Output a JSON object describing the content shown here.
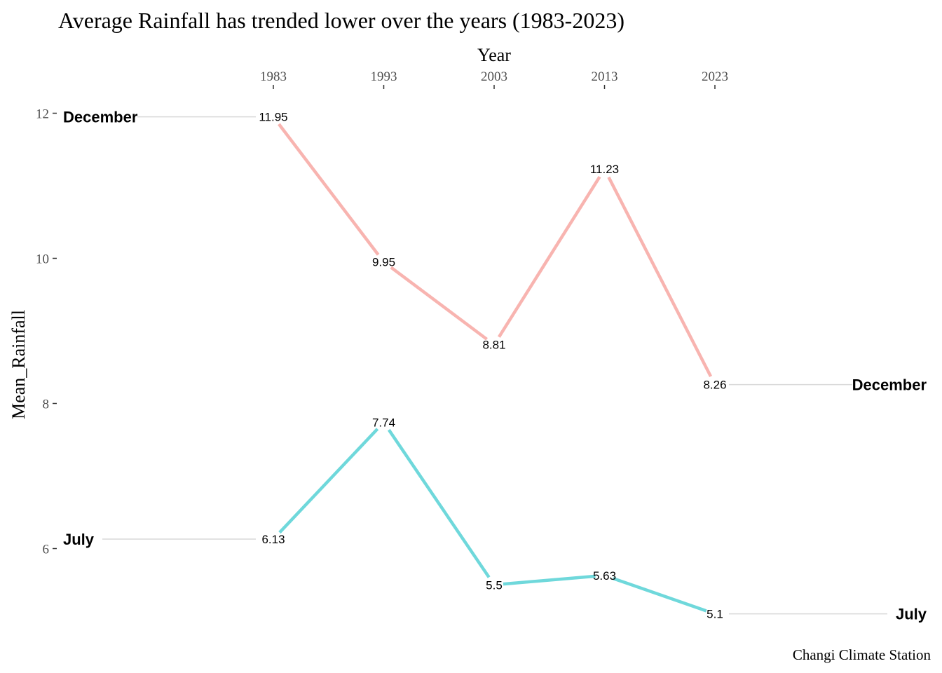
{
  "chart_data": {
    "type": "line",
    "title": "Average Rainfall has trended lower over the years (1983-2023)",
    "xlabel": "Year",
    "ylabel": "Mean_Rainfall",
    "caption": "Changi Climate Station",
    "x": [
      1983,
      1993,
      2003,
      2013,
      2023
    ],
    "x_ticks": [
      "1983",
      "1993",
      "2003",
      "2013",
      "2023"
    ],
    "x_axis_position": "top",
    "y_ticks": [
      6,
      8,
      10,
      12
    ],
    "ylim": [
      4.9,
      12.0
    ],
    "grid": false,
    "legend": "none (series labelled directly at both ends)",
    "series": [
      {
        "name": "December",
        "color": "#f8b4b0",
        "values": [
          11.95,
          9.95,
          8.81,
          11.23,
          8.26
        ],
        "labels": [
          "11.95",
          "9.95",
          "8.81",
          "11.23",
          "8.26"
        ]
      },
      {
        "name": "July",
        "color": "#6fd8db",
        "values": [
          6.13,
          7.74,
          5.5,
          5.63,
          5.1
        ],
        "labels": [
          "6.13",
          "7.74",
          "5.5",
          "5.63",
          "5.1"
        ]
      }
    ],
    "connector_color": "#d9d9d9"
  }
}
